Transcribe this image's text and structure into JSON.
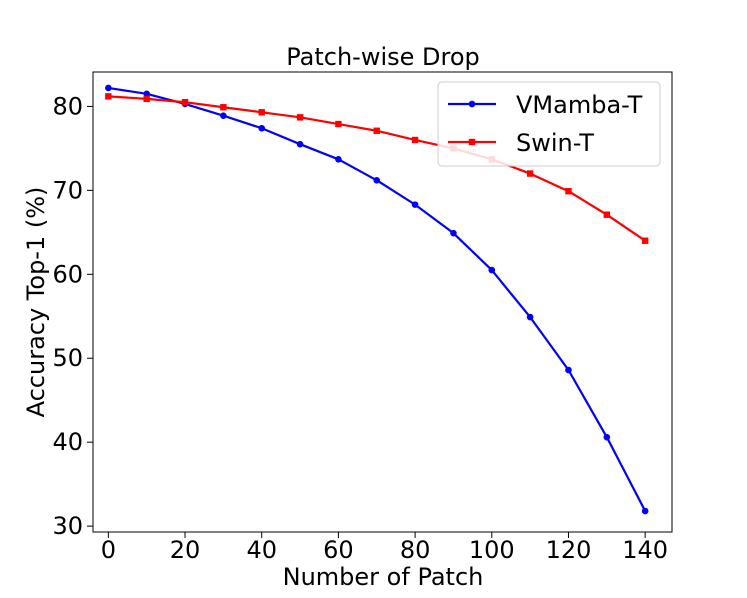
{
  "chart_data": {
    "type": "line",
    "title": "Patch-wise Drop",
    "xlabel": "Number of Patch",
    "ylabel": "Accuracy Top-1 (%)",
    "xlim": [
      -4,
      147
    ],
    "ylim": [
      29.3,
      84.1
    ],
    "xticks": [
      0,
      20,
      40,
      60,
      80,
      100,
      120,
      140
    ],
    "yticks": [
      30,
      40,
      50,
      60,
      70,
      80
    ],
    "grid": false,
    "legend_position": "top-right",
    "x": [
      0,
      10,
      20,
      30,
      40,
      50,
      60,
      70,
      80,
      90,
      100,
      110,
      120,
      130,
      140
    ],
    "series": [
      {
        "name": "VMamba-T",
        "color": "#0000ff",
        "marker": "circle",
        "values": [
          82.2,
          81.5,
          80.3,
          78.9,
          77.4,
          75.5,
          73.7,
          71.2,
          68.3,
          64.9,
          60.5,
          54.9,
          48.6,
          40.6,
          31.8
        ]
      },
      {
        "name": "Swin-T",
        "color": "#ff0000",
        "marker": "square",
        "values": [
          81.2,
          80.9,
          80.5,
          79.9,
          79.3,
          78.7,
          77.9,
          77.1,
          76.0,
          75.0,
          73.7,
          72.0,
          69.9,
          67.1,
          64.0
        ]
      }
    ]
  }
}
